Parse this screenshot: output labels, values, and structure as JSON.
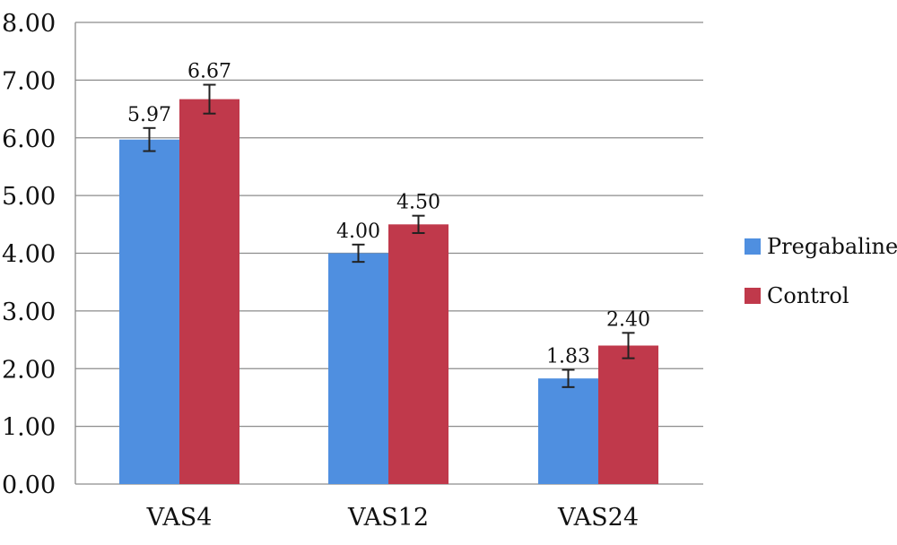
{
  "chart_data": {
    "type": "bar",
    "title": "",
    "xlabel": "",
    "ylabel": "",
    "categories": [
      "VAS4",
      "VAS12",
      "VAS24"
    ],
    "ylim": [
      0,
      8
    ],
    "ytick_step": 1,
    "ytick_labels": [
      "0.00",
      "1.00",
      "2.00",
      "3.00",
      "4.00",
      "5.00",
      "6.00",
      "7.00",
      "8.00"
    ],
    "grid": true,
    "legend": "right",
    "series": [
      {
        "name": "Pregabaline",
        "color": "#4f8fe0",
        "values": [
          5.97,
          4.0,
          1.83
        ],
        "labels": [
          "5.97",
          "4.00",
          "1.83"
        ],
        "error": [
          0.2,
          0.15,
          0.15
        ]
      },
      {
        "name": "Control",
        "color": "#c0394b",
        "values": [
          6.67,
          4.5,
          2.4
        ],
        "labels": [
          "6.67",
          "4.50",
          "2.40"
        ],
        "error": [
          0.25,
          0.15,
          0.22
        ]
      }
    ]
  }
}
